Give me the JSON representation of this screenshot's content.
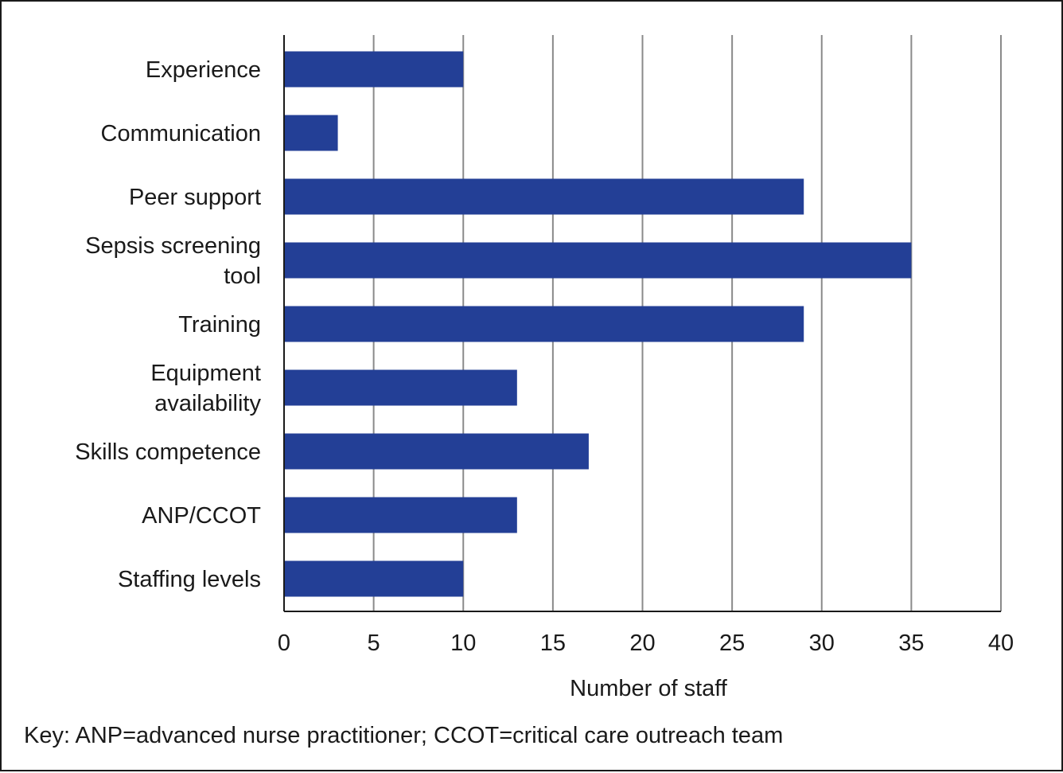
{
  "chart_data": {
    "type": "bar",
    "orientation": "horizontal",
    "categories": [
      "Experience",
      "Communication",
      "Peer support",
      "Sepsis screening tool",
      "Training",
      "Equipment availability",
      "Skills competence",
      "ANP/CCOT",
      "Staffing levels"
    ],
    "category_label_lines": [
      [
        "Experience"
      ],
      [
        "Communication"
      ],
      [
        "Peer support"
      ],
      [
        "Sepsis screening",
        "tool"
      ],
      [
        "Training"
      ],
      [
        "Equipment",
        "availability"
      ],
      [
        "Skills competence"
      ],
      [
        "ANP/CCOT"
      ],
      [
        "Staffing levels"
      ]
    ],
    "values": [
      10,
      3,
      29,
      35,
      29,
      13,
      17,
      13,
      10
    ],
    "xlabel": "Number of staff",
    "ylabel": "",
    "xlim": [
      0,
      40
    ],
    "xticks": [
      0,
      5,
      10,
      15,
      20,
      25,
      30,
      35,
      40
    ],
    "grid": "vertical",
    "legend": "none",
    "bar_color": "#233f96",
    "grid_color": "#8a8a8a",
    "text_color": "#1a1a1a"
  },
  "key_note": "Key: ANP=advanced nurse practitioner; CCOT=critical care outreach team"
}
